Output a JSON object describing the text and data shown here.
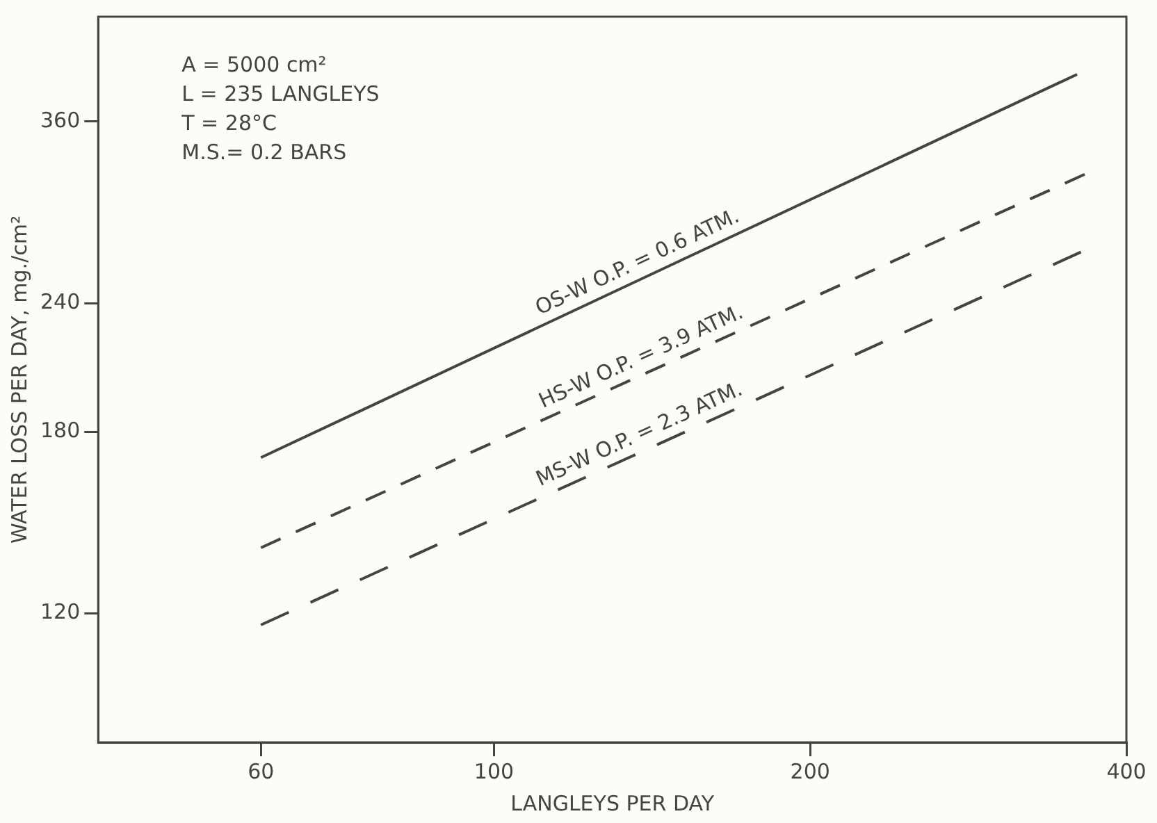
{
  "chart_data": {
    "type": "line",
    "xlabel": "LANGLEYS PER DAY",
    "ylabel": "WATER LOSS PER DAY, mg./cm²",
    "log": "xy",
    "grid": false,
    "legend": false,
    "marker": "none",
    "xlim": [
      42,
      400
    ],
    "xticks": [
      60,
      100,
      200,
      400
    ],
    "ylim": [
      90,
      455
    ],
    "yticks": [
      120,
      180,
      240,
      360
    ],
    "series": [
      {
        "name": "OS-W O.P. = 0.6 ATM.",
        "color": "#444444",
        "line_style": "solid",
        "x": [
          60,
          359
        ],
        "values": [
          170,
          400
        ]
      },
      {
        "name": "HS-W O.P. = 3.9 ATM.",
        "color": "#444444",
        "line_style": "dashed",
        "x": [
          60,
          365
        ],
        "values": [
          139,
          320
        ]
      },
      {
        "name": "MS-W O.P. = 2.3 ATM.",
        "color": "#444444",
        "line_style": "dashed",
        "x": [
          60,
          362
        ],
        "values": [
          117,
          269
        ]
      }
    ],
    "annotations": [
      "A = 5000 cm²",
      "L = 235 LANGLEYS",
      "T = 28°C",
      "M.S.= 0.2 BARS"
    ]
  }
}
